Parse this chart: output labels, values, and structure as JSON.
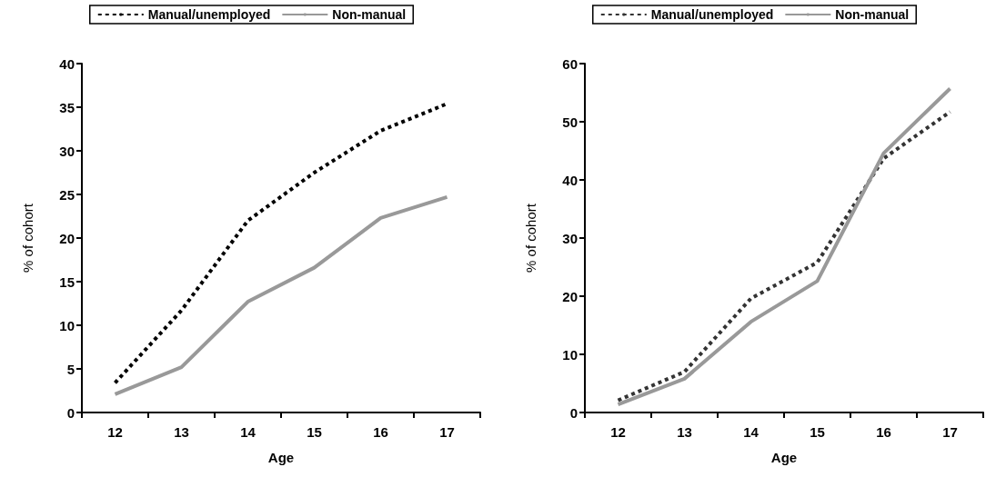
{
  "chart_data": [
    {
      "type": "line",
      "categories": [
        "12",
        "13",
        "14",
        "15",
        "16",
        "17"
      ],
      "xlabel": "Age",
      "ylabel": "% of cohort",
      "ylim": [
        0,
        40
      ],
      "yticks": [
        0,
        5,
        10,
        15,
        20,
        25,
        30,
        35,
        40
      ],
      "grid": false,
      "legend": "top",
      "marker": "none",
      "series": [
        {
          "name": "Manual/unemployed",
          "color": "#000000",
          "line_style": "dashed",
          "values": [
            3.4,
            11.7,
            22.0,
            27.5,
            32.3,
            35.4
          ]
        },
        {
          "name": "Non-manual",
          "color": "#999999",
          "line_style": "solid",
          "values": [
            2.1,
            5.2,
            12.7,
            16.6,
            22.3,
            24.7
          ]
        }
      ]
    },
    {
      "type": "line",
      "categories": [
        "12",
        "13",
        "14",
        "15",
        "16",
        "17"
      ],
      "xlabel": "Age",
      "ylabel": "% of cohort",
      "ylim": [
        0,
        60
      ],
      "yticks": [
        0,
        10,
        20,
        30,
        40,
        50,
        60
      ],
      "grid": false,
      "legend": "top",
      "marker": "none",
      "series": [
        {
          "name": "Manual/unemployed",
          "color": "#333333",
          "line_style": "dashed",
          "values": [
            2.1,
            7.0,
            19.6,
            25.8,
            43.7,
            51.7
          ]
        },
        {
          "name": "Non-manual",
          "color": "#999999",
          "line_style": "solid",
          "values": [
            1.4,
            5.8,
            15.6,
            22.6,
            44.6,
            55.7
          ]
        }
      ]
    }
  ]
}
